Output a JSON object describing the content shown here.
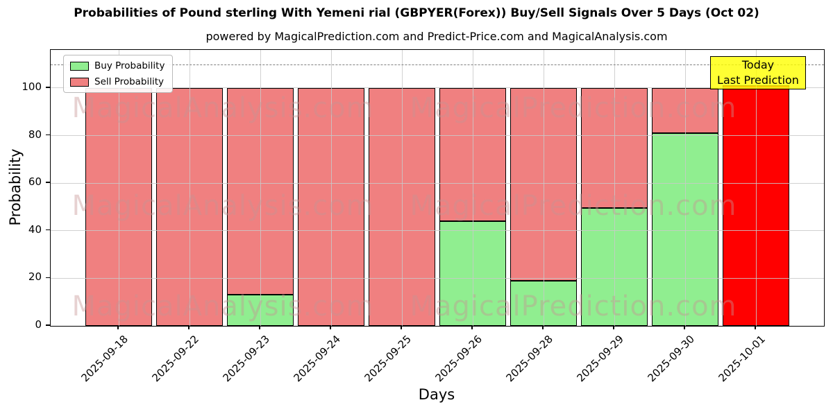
{
  "title": "Probabilities of Pound sterling With Yemeni rial (GBPYER(Forex)) Buy/Sell Signals Over 5 Days (Oct 02)",
  "subtitle": "powered by MagicalPrediction.com and Predict-Price.com and MagicalAnalysis.com",
  "annotation": {
    "lines": [
      "Today",
      "Last Prediction"
    ],
    "bg_color": "#FFFF00",
    "border_color": "#000000"
  },
  "watermarks": {
    "left_text": "MagicalAnalysis.com",
    "right_text": "MagicalPrediction.com",
    "rows": 3
  },
  "colors": {
    "buy": "#90EE90",
    "sell": "#F08080",
    "today": "#FF0000",
    "edge": "#000000",
    "grid": "#C9C9C9",
    "dashed_line": "#7F7F7F"
  },
  "chart_data": {
    "type": "bar",
    "stacked": true,
    "title": "Probabilities of Pound sterling With Yemeni rial (GBPYER(Forex)) Buy/Sell Signals Over 5 Days (Oct 02)",
    "subtitle": "powered by MagicalPrediction.com and Predict-Price.com and MagicalAnalysis.com",
    "xlabel": "Days",
    "ylabel": "Probability",
    "ylim": [
      0,
      116
    ],
    "yticks": [
      0,
      20,
      40,
      60,
      80,
      100
    ],
    "grid": true,
    "legend_position": "upper left",
    "reference_line": {
      "y": 110,
      "style": "dashed"
    },
    "categories": [
      "2025-09-18",
      "2025-09-22",
      "2025-09-23",
      "2025-09-24",
      "2025-09-25",
      "2025-09-26",
      "2025-09-28",
      "2025-09-29",
      "2025-09-30",
      "2025-10-01"
    ],
    "series": [
      {
        "name": "Buy Probability",
        "color": "#90EE90",
        "values": [
          0,
          0,
          13,
          0,
          0,
          44,
          19,
          49.5,
          81,
          null
        ]
      },
      {
        "name": "Sell Probability",
        "color": "#F08080",
        "values": [
          100,
          100,
          87,
          100,
          100,
          56,
          81,
          50.5,
          19,
          null
        ]
      },
      {
        "name": "Today / Last Prediction",
        "color": "#FF0000",
        "values": [
          null,
          null,
          null,
          null,
          null,
          null,
          null,
          null,
          null,
          101
        ]
      }
    ]
  }
}
